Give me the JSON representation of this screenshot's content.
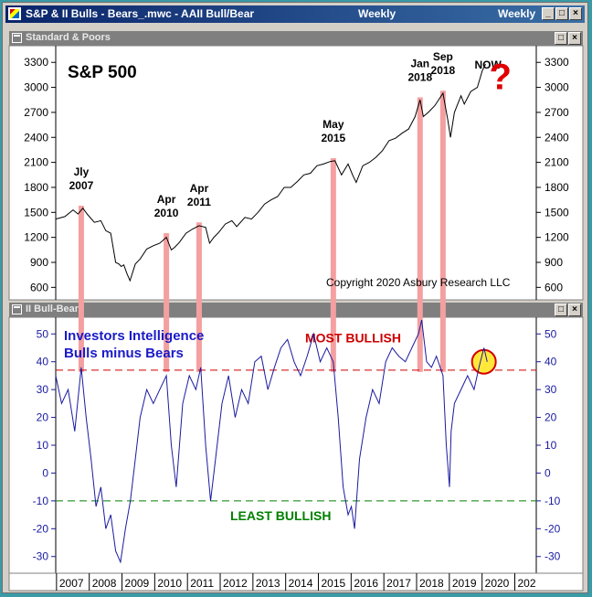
{
  "window": {
    "title_left": "S&P & II Bulls - Bears_.mwc - AAII Bull/Bear",
    "title_mid": "Weekly",
    "title_right": "Weekly",
    "app_icon": "chart-app-icon"
  },
  "panes": [
    {
      "title": "Standard & Poors"
    },
    {
      "title": "II Bull-Bear"
    }
  ],
  "chart_data": [
    {
      "type": "line",
      "title": "S&P 500",
      "copyright": "Copyright 2020 Asbury Research LLC",
      "yticks": [
        600,
        900,
        1200,
        1500,
        1800,
        2100,
        2400,
        2700,
        3000,
        3300
      ],
      "ylim": [
        450,
        3500
      ],
      "xlim": [
        2006.92,
        2021.6
      ],
      "line_color": "#000000",
      "x": [
        2006.92,
        2007.2,
        2007.45,
        2007.6,
        2007.75,
        2007.9,
        2008.1,
        2008.3,
        2008.45,
        2008.6,
        2008.75,
        2008.85,
        2008.92,
        2009.0,
        2009.1,
        2009.19,
        2009.35,
        2009.5,
        2009.7,
        2009.9,
        2010.1,
        2010.3,
        2010.45,
        2010.55,
        2010.7,
        2010.9,
        2011.1,
        2011.3,
        2011.5,
        2011.62,
        2011.75,
        2011.9,
        2012.1,
        2012.3,
        2012.45,
        2012.7,
        2012.9,
        2013.1,
        2013.3,
        2013.5,
        2013.7,
        2013.9,
        2014.1,
        2014.3,
        2014.5,
        2014.7,
        2014.9,
        2015.1,
        2015.3,
        2015.45,
        2015.65,
        2015.85,
        2016.0,
        2016.1,
        2016.3,
        2016.5,
        2016.7,
        2016.9,
        2017.1,
        2017.3,
        2017.5,
        2017.7,
        2017.9,
        2018.05,
        2018.15,
        2018.3,
        2018.5,
        2018.75,
        2018.9,
        2018.98,
        2019.1,
        2019.3,
        2019.4,
        2019.6,
        2019.8,
        2019.95,
        2020.05
      ],
      "y": [
        1420,
        1450,
        1530,
        1480,
        1550,
        1470,
        1380,
        1400,
        1280,
        1250,
        900,
        880,
        850,
        870,
        760,
        680,
        880,
        940,
        1060,
        1100,
        1130,
        1200,
        1050,
        1080,
        1140,
        1250,
        1300,
        1340,
        1320,
        1130,
        1200,
        1260,
        1360,
        1400,
        1330,
        1440,
        1420,
        1500,
        1600,
        1650,
        1690,
        1800,
        1800,
        1870,
        1950,
        1970,
        2060,
        2080,
        2110,
        2120,
        1950,
        2080,
        1940,
        1860,
        2060,
        2100,
        2160,
        2240,
        2360,
        2390,
        2450,
        2500,
        2650,
        2850,
        2650,
        2700,
        2780,
        2930,
        2600,
        2400,
        2700,
        2900,
        2800,
        2950,
        3000,
        3200,
        3280
      ],
      "annotations": [
        {
          "line1": "Jly",
          "line2": "2007",
          "x": 2007.7,
          "y_top": 1580
        },
        {
          "line1": "Apr",
          "line2": "2010",
          "x": 2010.3,
          "y_top": 1250
        },
        {
          "line1": "Apr",
          "line2": "2011",
          "x": 2011.3,
          "y_top": 1380
        },
        {
          "line1": "May",
          "line2": "2015",
          "x": 2015.4,
          "y_top": 2150
        },
        {
          "line1": "Jan",
          "line2": "2018",
          "x": 2018.05,
          "y_top": 2880
        },
        {
          "line1": "Sep",
          "line2": "2018",
          "x": 2018.75,
          "y_top": 2960
        }
      ],
      "now_label": "NOW",
      "question_mark": "?",
      "question_color": "#e00000",
      "band_color": "#f4a0a0"
    },
    {
      "type": "line",
      "title": "Investors Intelligence",
      "subtitle": "Bulls minus Bears",
      "yticks": [
        -30,
        -20,
        -10,
        0,
        10,
        20,
        30,
        40,
        50
      ],
      "ylim": [
        -36,
        56
      ],
      "xlim": [
        2006.92,
        2021.6
      ],
      "line_color": "#1a1aa0",
      "x": [
        2006.92,
        2007.1,
        2007.3,
        2007.5,
        2007.7,
        2007.85,
        2008.0,
        2008.15,
        2008.3,
        2008.45,
        2008.6,
        2008.75,
        2008.9,
        2009.05,
        2009.2,
        2009.35,
        2009.5,
        2009.7,
        2009.9,
        2010.1,
        2010.3,
        2010.45,
        2010.6,
        2010.8,
        2011.0,
        2011.2,
        2011.35,
        2011.5,
        2011.65,
        2011.8,
        2012.0,
        2012.2,
        2012.4,
        2012.6,
        2012.8,
        2013.0,
        2013.2,
        2013.4,
        2013.6,
        2013.8,
        2014.0,
        2014.2,
        2014.4,
        2014.6,
        2014.8,
        2015.0,
        2015.2,
        2015.4,
        2015.55,
        2015.7,
        2015.85,
        2015.95,
        2016.05,
        2016.2,
        2016.4,
        2016.6,
        2016.8,
        2017.0,
        2017.2,
        2017.4,
        2017.6,
        2017.8,
        2018.0,
        2018.1,
        2018.25,
        2018.4,
        2018.55,
        2018.75,
        2018.85,
        2018.95,
        2019.0,
        2019.1,
        2019.3,
        2019.5,
        2019.7,
        2019.85,
        2020.0,
        2020.1
      ],
      "y": [
        35,
        25,
        30,
        15,
        38,
        20,
        5,
        -12,
        -5,
        -20,
        -15,
        -28,
        -32,
        -20,
        -10,
        5,
        20,
        30,
        25,
        30,
        35,
        10,
        -5,
        25,
        35,
        30,
        38,
        10,
        -10,
        5,
        25,
        35,
        20,
        30,
        25,
        40,
        42,
        30,
        38,
        45,
        48,
        40,
        35,
        42,
        50,
        40,
        45,
        40,
        20,
        -5,
        -15,
        -12,
        -20,
        5,
        20,
        30,
        25,
        40,
        45,
        42,
        40,
        45,
        50,
        55,
        40,
        38,
        42,
        35,
        10,
        -5,
        15,
        25,
        30,
        35,
        30,
        38,
        45,
        40
      ],
      "most_bullish_label": "MOST BULLISH",
      "least_bullish_label": "LEAST BULLISH",
      "most_bullish_level": 37,
      "least_bullish_level": -10,
      "most_bullish_color": "#cc0000",
      "least_bullish_color": "#008000",
      "circle_at": {
        "x": 2020.0,
        "y": 40
      },
      "circle_fill": "#ffe83a",
      "circle_stroke": "#d40000",
      "xticks": [
        "2007",
        "2008",
        "2009",
        "2010",
        "2011",
        "2012",
        "2013",
        "2014",
        "2015",
        "2016",
        "2017",
        "2018",
        "2019",
        "2020",
        "202"
      ]
    }
  ]
}
